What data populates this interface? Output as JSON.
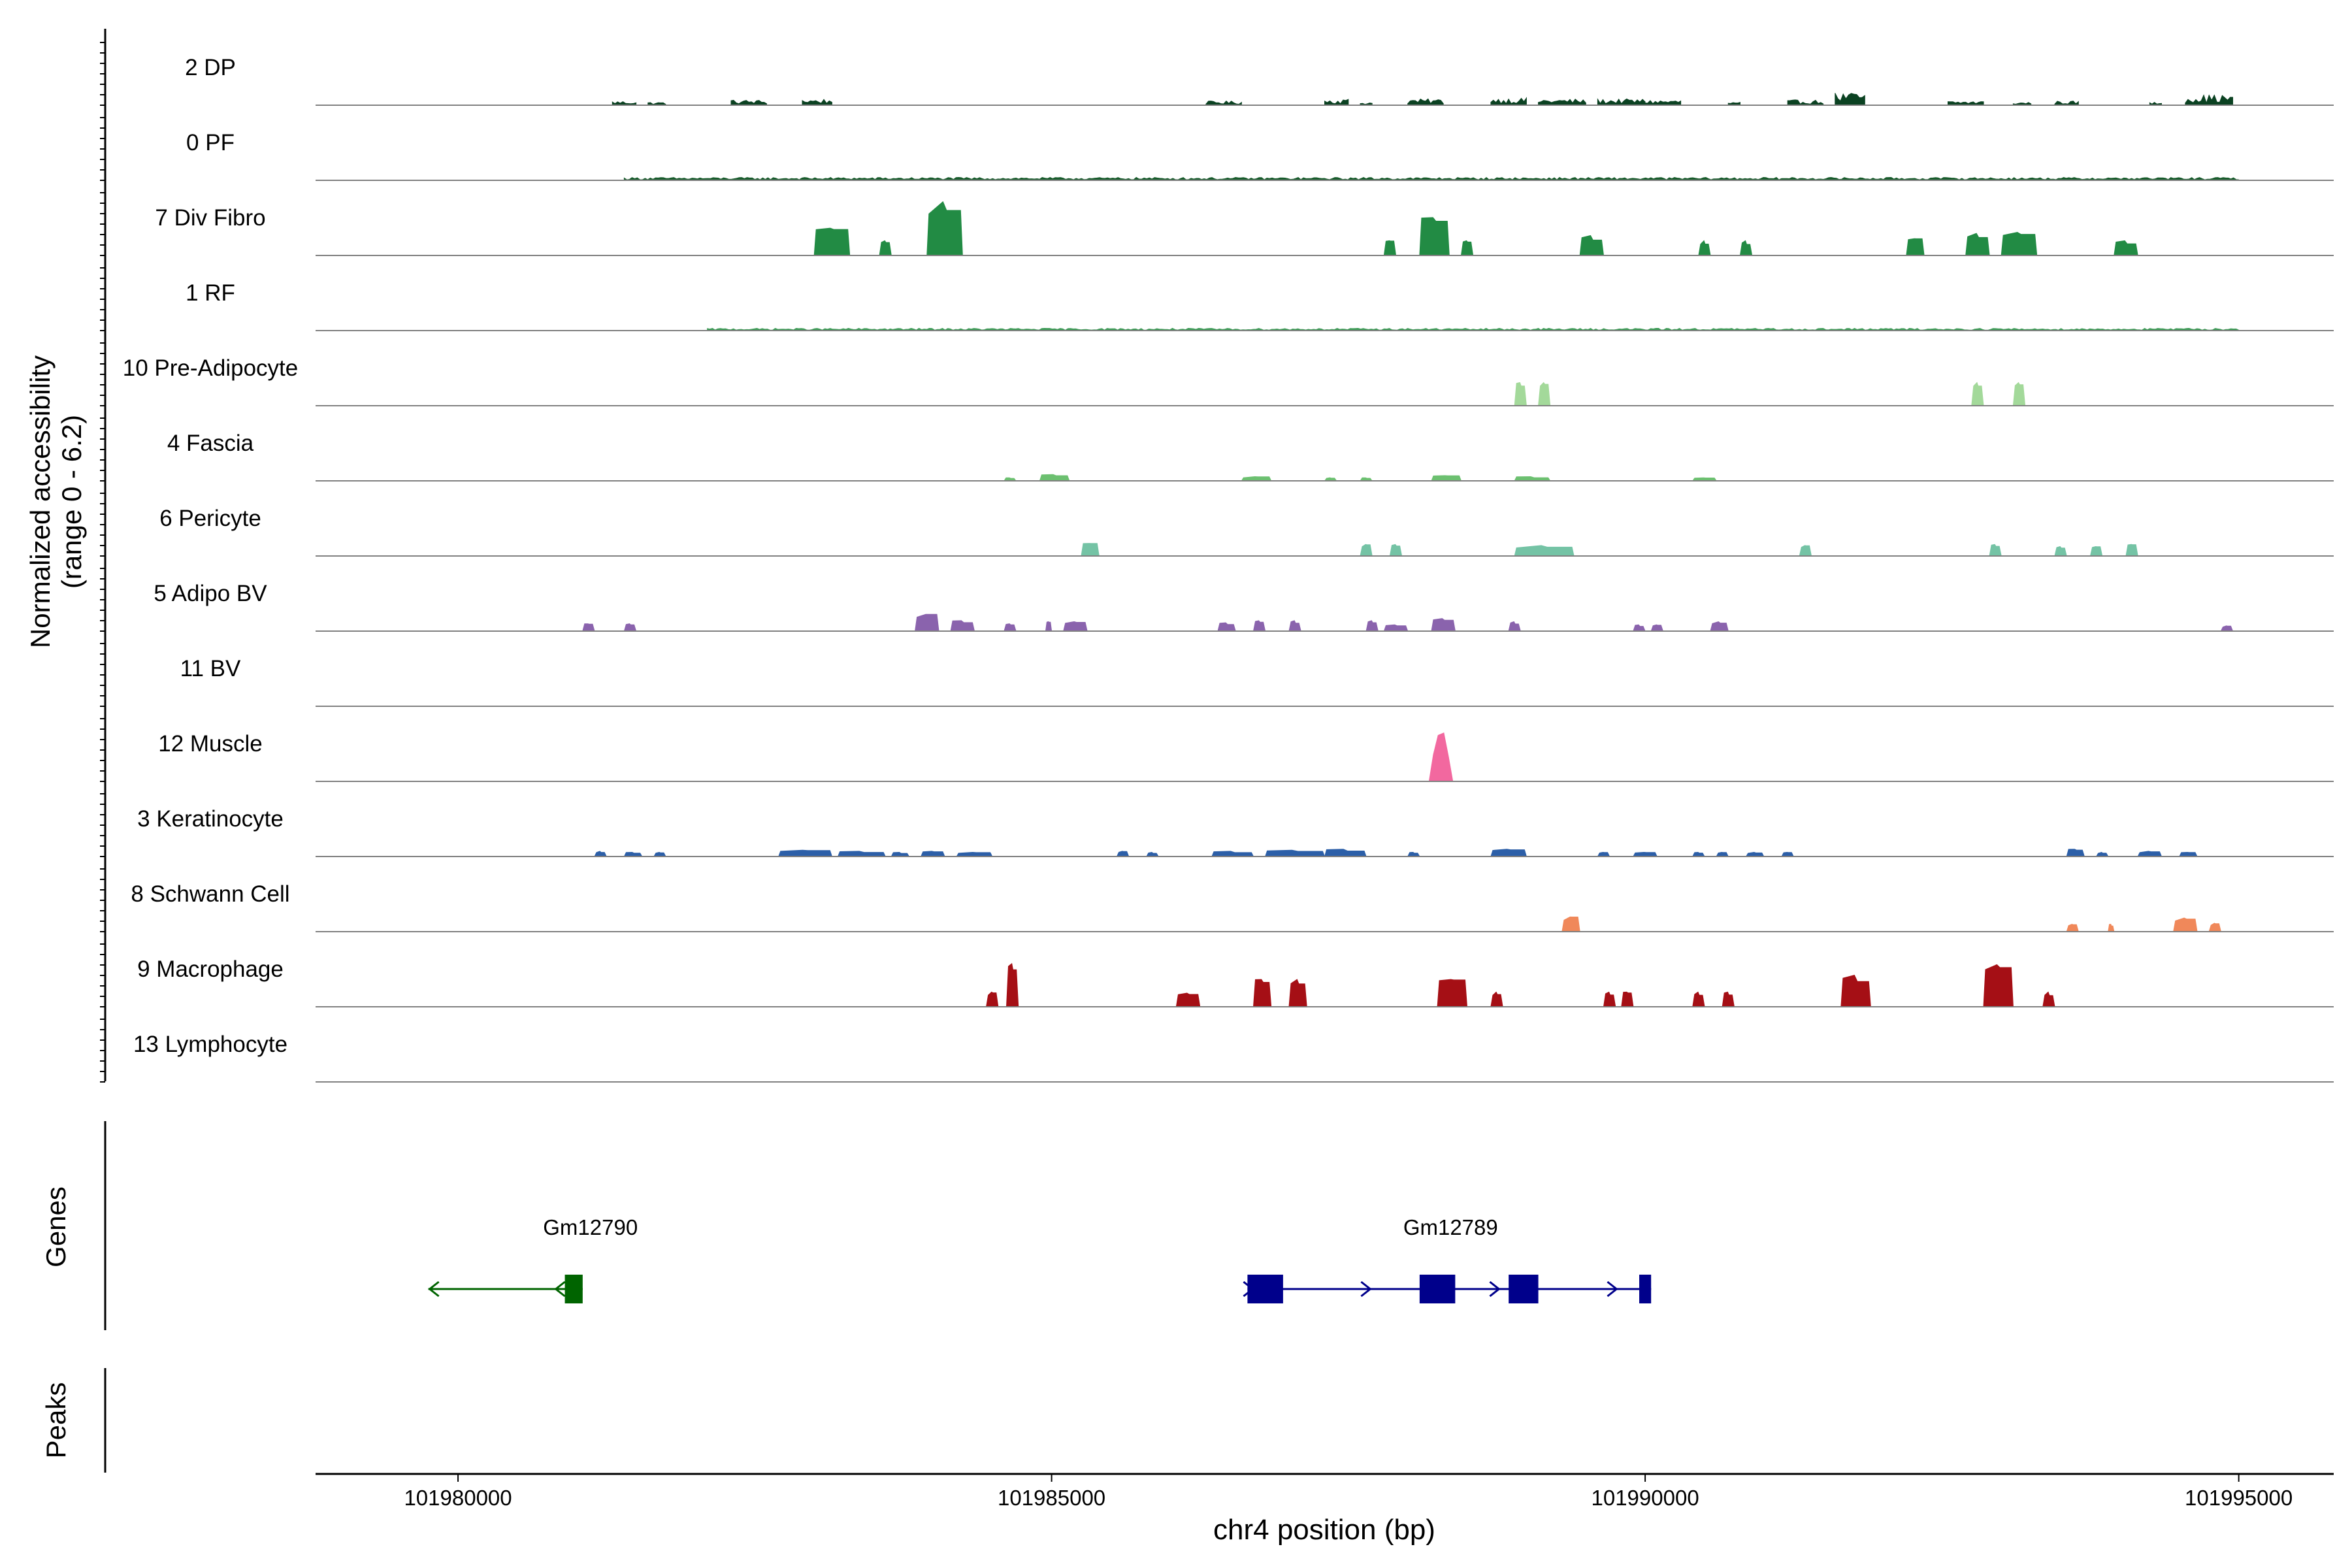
{
  "chart_data": {
    "type": "area",
    "y_axis_label_line1": "Normalized accessibility",
    "y_axis_label_line2": "(range 0 - 6.2)",
    "xlabel": "chr4 position (bp)",
    "x_ticks": [
      "101980000",
      "101985000",
      "101990000",
      "101995000"
    ],
    "x_tick_values": [
      101980000,
      101985000,
      101990000,
      101995000
    ],
    "xlim": [
      101978800,
      101995800
    ],
    "ylim": [
      0,
      6.2
    ],
    "grid": false,
    "series": [
      {
        "name": "2 DP",
        "color": "#0b4222",
        "style": "dense",
        "peaks": [
          [
            101981300,
            101981500,
            0.4
          ],
          [
            101981600,
            101981750,
            0.3
          ],
          [
            101982300,
            101982600,
            0.5
          ],
          [
            101982900,
            101983150,
            0.6
          ],
          [
            101986300,
            101986600,
            0.4
          ],
          [
            101987300,
            101987500,
            0.6
          ],
          [
            101987600,
            101987700,
            0.3
          ],
          [
            101988000,
            101988300,
            0.6
          ],
          [
            101988700,
            101989000,
            0.7
          ],
          [
            101989100,
            101989500,
            0.6
          ],
          [
            101989600,
            101990000,
            0.6
          ],
          [
            101990000,
            101990300,
            0.5
          ],
          [
            101990700,
            101990800,
            0.3
          ],
          [
            101991200,
            101991500,
            0.5
          ],
          [
            101991600,
            101991850,
            1.2
          ],
          [
            101992550,
            101992850,
            0.4
          ],
          [
            101993100,
            101993250,
            0.3
          ],
          [
            101993450,
            101993650,
            0.4
          ],
          [
            101994250,
            101994350,
            0.3
          ],
          [
            101994550,
            101994950,
            1.0
          ]
        ]
      },
      {
        "name": "0 PF",
        "color": "#185c2c",
        "style": "dense",
        "peaks": [
          [
            101981400,
            101995000,
            0.28
          ]
        ]
      },
      {
        "name": "7 Div Fibro",
        "color": "#228b44",
        "style": "block",
        "peaks": [
          [
            101983000,
            101983300,
            2.6
          ],
          [
            101983550,
            101983650,
            1.4
          ],
          [
            101983950,
            101984250,
            5.1
          ],
          [
            101987800,
            101987900,
            1.4
          ],
          [
            101988100,
            101988350,
            3.6
          ],
          [
            101988450,
            101988550,
            1.4
          ],
          [
            101989450,
            101989650,
            1.9
          ],
          [
            101990450,
            101990550,
            1.4
          ],
          [
            101990800,
            101990900,
            1.4
          ],
          [
            101992200,
            101992350,
            1.6
          ],
          [
            101992700,
            101992900,
            2.1
          ],
          [
            101993000,
            101993300,
            2.2
          ],
          [
            101993950,
            101994150,
            1.4
          ]
        ]
      },
      {
        "name": "1 RF",
        "color": "#3c9c56",
        "style": "dense",
        "peaks": [
          [
            101982100,
            101995000,
            0.22
          ]
        ]
      },
      {
        "name": "10 Pre-Adipocyte",
        "color": "#a3d99a",
        "style": "block",
        "peaks": [
          [
            101988900,
            101989000,
            2.2
          ],
          [
            101989100,
            101989200,
            2.2
          ],
          [
            101992750,
            101992850,
            2.2
          ],
          [
            101993100,
            101993200,
            2.2
          ]
        ]
      },
      {
        "name": "4 Fascia",
        "color": "#6cc070",
        "style": "small",
        "peaks": [
          [
            101984600,
            101984700,
            0.3
          ],
          [
            101984900,
            101985150,
            0.6
          ],
          [
            101986600,
            101986850,
            0.4
          ],
          [
            101987300,
            101987400,
            0.3
          ],
          [
            101987600,
            101987700,
            0.3
          ],
          [
            101988200,
            101988450,
            0.5
          ],
          [
            101988900,
            101989200,
            0.4
          ],
          [
            101990400,
            101990600,
            0.3
          ]
        ]
      },
      {
        "name": "6 Pericyte",
        "color": "#74c3a5",
        "style": "small",
        "peaks": [
          [
            101985250,
            101985400,
            1.2
          ],
          [
            101987600,
            101987700,
            1.1
          ],
          [
            101987850,
            101987950,
            1.1
          ],
          [
            101988900,
            101989400,
            1.0
          ],
          [
            101991300,
            101991400,
            1.0
          ],
          [
            101992900,
            101993000,
            1.1
          ],
          [
            101993450,
            101993550,
            0.9
          ],
          [
            101993750,
            101993850,
            0.9
          ],
          [
            101994050,
            101994150,
            1.1
          ]
        ]
      },
      {
        "name": "5 Adipo BV",
        "color": "#8a63ad",
        "style": "small",
        "peaks": [
          [
            101981050,
            101981150,
            0.7
          ],
          [
            101981400,
            101981500,
            0.7
          ],
          [
            101983850,
            101984050,
            1.6
          ],
          [
            101984150,
            101984350,
            1.0
          ],
          [
            101984600,
            101984700,
            0.7
          ],
          [
            101984950,
            101985000,
            0.9
          ],
          [
            101985100,
            101985300,
            0.9
          ],
          [
            101986400,
            101986550,
            0.8
          ],
          [
            101986700,
            101986800,
            1.0
          ],
          [
            101987000,
            101987100,
            1.0
          ],
          [
            101987650,
            101987750,
            1.0
          ],
          [
            101987800,
            101988000,
            0.6
          ],
          [
            101988200,
            101988400,
            1.2
          ],
          [
            101988850,
            101988950,
            0.9
          ],
          [
            101989900,
            101990000,
            0.6
          ],
          [
            101990050,
            101990150,
            0.6
          ],
          [
            101990550,
            101990700,
            0.9
          ],
          [
            101994850,
            101994950,
            0.5
          ]
        ]
      },
      {
        "name": "11 BV",
        "color": "#7a5195",
        "style": "small",
        "peaks": []
      },
      {
        "name": "12 Muscle",
        "color": "#f2689f",
        "style": "spike",
        "peaks": [
          [
            101988180,
            101988380,
            4.6
          ]
        ]
      },
      {
        "name": "3 Keratinocyte",
        "color": "#2c5fa8",
        "style": "small",
        "peaks": [
          [
            101981150,
            101981250,
            0.5
          ],
          [
            101981400,
            101981550,
            0.4
          ],
          [
            101981650,
            101981750,
            0.4
          ],
          [
            101982700,
            101983150,
            0.6
          ],
          [
            101983200,
            101983600,
            0.5
          ],
          [
            101983650,
            101983800,
            0.4
          ],
          [
            101983900,
            101984100,
            0.5
          ],
          [
            101984200,
            101984500,
            0.4
          ],
          [
            101985550,
            101985650,
            0.5
          ],
          [
            101985800,
            101985900,
            0.4
          ],
          [
            101986350,
            101986700,
            0.5
          ],
          [
            101986800,
            101987300,
            0.6
          ],
          [
            101987300,
            101987650,
            0.7
          ],
          [
            101988000,
            101988100,
            0.4
          ],
          [
            101988700,
            101989000,
            0.7
          ],
          [
            101989600,
            101989700,
            0.4
          ],
          [
            101989900,
            101990100,
            0.4
          ],
          [
            101990400,
            101990500,
            0.4
          ],
          [
            101990600,
            101990700,
            0.4
          ],
          [
            101990850,
            101991000,
            0.4
          ],
          [
            101991150,
            101991250,
            0.4
          ],
          [
            101993550,
            101993700,
            0.7
          ],
          [
            101993800,
            101993900,
            0.4
          ],
          [
            101994150,
            101994350,
            0.5
          ],
          [
            101994500,
            101994650,
            0.4
          ]
        ]
      },
      {
        "name": "8 Schwann Cell",
        "color": "#f0885a",
        "style": "small",
        "peaks": [
          [
            101989300,
            101989450,
            1.4
          ],
          [
            101993550,
            101993650,
            0.7
          ],
          [
            101993900,
            101993950,
            0.7
          ],
          [
            101994450,
            101994650,
            1.3
          ],
          [
            101994750,
            101994850,
            0.8
          ]
        ]
      },
      {
        "name": "9 Macrophage",
        "color": "#a50f15",
        "style": "block",
        "peaks": [
          [
            101984450,
            101984550,
            1.4
          ],
          [
            101984620,
            101984720,
            4.1
          ],
          [
            101986050,
            101986250,
            1.3
          ],
          [
            101986700,
            101986850,
            2.6
          ],
          [
            101987000,
            101987150,
            2.6
          ],
          [
            101988250,
            101988500,
            2.6
          ],
          [
            101988700,
            101988800,
            1.4
          ],
          [
            101989650,
            101989750,
            1.4
          ],
          [
            101989800,
            101989900,
            1.4
          ],
          [
            101990400,
            101990500,
            1.4
          ],
          [
            101990650,
            101990750,
            1.4
          ],
          [
            101991650,
            101991900,
            3.0
          ],
          [
            101992850,
            101993100,
            4.0
          ],
          [
            101993350,
            101993450,
            1.4
          ]
        ]
      },
      {
        "name": "13 Lymphocyte",
        "color": "#5a5a5a",
        "style": "small",
        "peaks": []
      }
    ],
    "genes_label": "Genes",
    "peaks_label": "Peaks",
    "genes": [
      {
        "name": "Gm12790",
        "strand": "-",
        "color": "#006400",
        "start": 101979750,
        "end": 101981050,
        "exons": [
          [
            101980900,
            101981050
          ]
        ]
      },
      {
        "name": "Gm12789",
        "strand": "+",
        "color": "#00008b",
        "start": 101986650,
        "end": 101990050,
        "exons": [
          [
            101986650,
            101986950
          ],
          [
            101988100,
            101988400
          ],
          [
            101988850,
            101989100
          ],
          [
            101989950,
            101990050
          ]
        ]
      }
    ]
  }
}
